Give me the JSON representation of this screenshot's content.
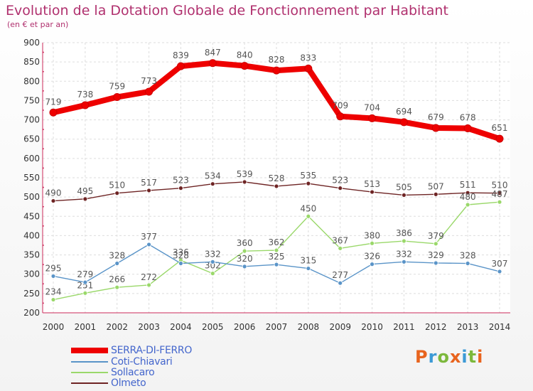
{
  "header": {
    "title": "Evolution de la Dotation Globale de Fonctionnement par Habitant",
    "subtitle": "(en € et par an)"
  },
  "brand": {
    "text": "Proxiti",
    "colors": [
      "#e8641e",
      "#3c9ad6",
      "#7cb83c",
      "#e8641e",
      "#3c9ad6",
      "#7cb83c",
      "#e8641e"
    ]
  },
  "chart_data": {
    "type": "line",
    "x": [
      "2000",
      "2001",
      "2002",
      "2003",
      "2004",
      "2005",
      "2006",
      "2007",
      "2008",
      "2009",
      "2010",
      "2011",
      "2012",
      "2013",
      "2014"
    ],
    "ylim": [
      200,
      900
    ],
    "yticks": [
      200,
      250,
      300,
      350,
      400,
      450,
      500,
      550,
      600,
      650,
      700,
      750,
      800,
      850,
      900
    ],
    "grid": true,
    "legend_position": "bottom-left",
    "series": [
      {
        "name": "SERRA-DI-FERRO",
        "color": "#ee0000",
        "values": [
          719,
          738,
          759,
          773,
          839,
          847,
          840,
          828,
          833,
          709,
          704,
          694,
          679,
          678,
          651
        ]
      },
      {
        "name": "Coti-Chiavari",
        "color": "#5a94c8",
        "values": [
          295,
          279,
          328,
          377,
          328,
          332,
          320,
          325,
          315,
          277,
          326,
          332,
          329,
          328,
          307
        ]
      },
      {
        "name": "Sollacaro",
        "color": "#9ad86a",
        "values": [
          234,
          251,
          266,
          272,
          336,
          302,
          360,
          362,
          450,
          367,
          380,
          386,
          379,
          480,
          487
        ]
      },
      {
        "name": "Olmeto",
        "color": "#6e2424",
        "values": [
          490,
          495,
          510,
          517,
          523,
          534,
          539,
          528,
          535,
          523,
          513,
          505,
          507,
          511,
          510
        ]
      }
    ]
  }
}
